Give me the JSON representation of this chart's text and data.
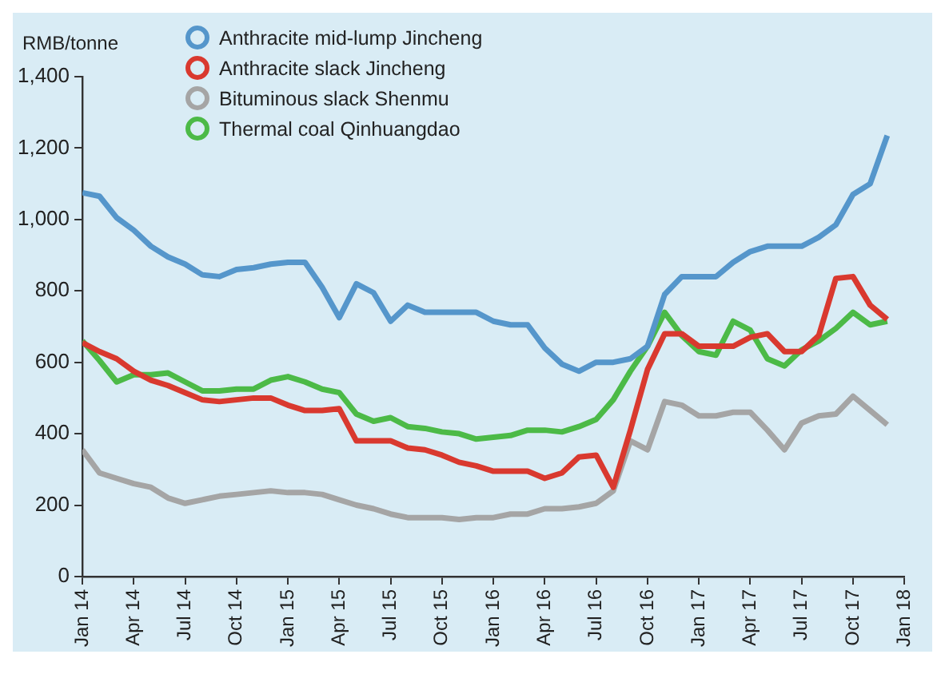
{
  "chart_data": {
    "type": "line",
    "ylabel": "RMB/tonne",
    "legend": "top left",
    "grid": false,
    "marker": "none",
    "line_style": "solid",
    "x": [
      "2014-01",
      "2014-02",
      "2014-03",
      "2014-04",
      "2014-05",
      "2014-06",
      "2014-07",
      "2014-08",
      "2014-09",
      "2014-10",
      "2014-11",
      "2014-12",
      "2015-01",
      "2015-02",
      "2015-03",
      "2015-04",
      "2015-05",
      "2015-06",
      "2015-07",
      "2015-08",
      "2015-09",
      "2015-10",
      "2015-11",
      "2015-12",
      "2016-01",
      "2016-02",
      "2016-03",
      "2016-04",
      "2016-05",
      "2016-06",
      "2016-07",
      "2016-08",
      "2016-09",
      "2016-10",
      "2016-11",
      "2016-12",
      "2017-01",
      "2017-02",
      "2017-03",
      "2017-04",
      "2017-05",
      "2017-06",
      "2017-07",
      "2017-08",
      "2017-09",
      "2017-10",
      "2017-11",
      "2017-12"
    ],
    "xlim": [
      "2014-01",
      "2018-01"
    ],
    "xticks": [
      {
        "value": "2014-01",
        "label": "Jan 14"
      },
      {
        "value": "2014-04",
        "label": "Apr 14"
      },
      {
        "value": "2014-07",
        "label": "Jul 14"
      },
      {
        "value": "2014-10",
        "label": "Oct 14"
      },
      {
        "value": "2015-01",
        "label": "Jan 15"
      },
      {
        "value": "2015-04",
        "label": "Apr 15"
      },
      {
        "value": "2015-07",
        "label": "Jul 15"
      },
      {
        "value": "2015-10",
        "label": "Oct 15"
      },
      {
        "value": "2016-01",
        "label": "Jan 16"
      },
      {
        "value": "2016-04",
        "label": "Apr 16"
      },
      {
        "value": "2016-07",
        "label": "Jul 16"
      },
      {
        "value": "2016-10",
        "label": "Oct 16"
      },
      {
        "value": "2017-01",
        "label": "Jan 17"
      },
      {
        "value": "2017-04",
        "label": "Apr 17"
      },
      {
        "value": "2017-07",
        "label": "Jul 17"
      },
      {
        "value": "2017-10",
        "label": "Oct 17"
      },
      {
        "value": "2018-01",
        "label": "Jan 18"
      }
    ],
    "ylim": [
      0,
      1400
    ],
    "yticks": [
      {
        "value": 0,
        "label": "0"
      },
      {
        "value": 200,
        "label": "200"
      },
      {
        "value": 400,
        "label": "400"
      },
      {
        "value": 600,
        "label": "600"
      },
      {
        "value": 800,
        "label": "800"
      },
      {
        "value": 1000,
        "label": "1,000"
      },
      {
        "value": 1200,
        "label": "1,200"
      },
      {
        "value": 1400,
        "label": "1,400"
      }
    ],
    "series": [
      {
        "name": "Anthracite mid-lump Jincheng",
        "color": "#5596cb",
        "values": [
          1075,
          1065,
          1005,
          970,
          925,
          895,
          875,
          845,
          840,
          860,
          865,
          875,
          880,
          880,
          810,
          725,
          820,
          795,
          715,
          760,
          740,
          740,
          740,
          740,
          715,
          705,
          705,
          640,
          595,
          575,
          600,
          600,
          610,
          645,
          790,
          840,
          840,
          840,
          880,
          910,
          925,
          925,
          925,
          950,
          985,
          1070,
          1100,
          1235
        ]
      },
      {
        "name": "Anthracite slack Jincheng",
        "color": "#d9392f",
        "values": [
          655,
          630,
          610,
          575,
          550,
          535,
          515,
          495,
          490,
          495,
          500,
          500,
          480,
          465,
          465,
          470,
          380,
          380,
          380,
          360,
          355,
          340,
          320,
          310,
          295,
          295,
          295,
          275,
          290,
          335,
          340,
          250,
          410,
          580,
          680,
          680,
          645,
          645,
          645,
          670,
          680,
          630,
          630,
          675,
          835,
          840,
          760,
          720
        ]
      },
      {
        "name": "Bituminous slack Shenmu",
        "color": "#a5a5a5",
        "values": [
          355,
          290,
          275,
          260,
          250,
          220,
          205,
          215,
          225,
          230,
          235,
          240,
          235,
          235,
          230,
          215,
          200,
          190,
          175,
          165,
          165,
          165,
          160,
          165,
          165,
          175,
          175,
          190,
          190,
          195,
          205,
          240,
          380,
          355,
          490,
          480,
          450,
          450,
          460,
          460,
          410,
          355,
          430,
          450,
          455,
          505,
          465,
          425
        ]
      },
      {
        "name": "Thermal coal Qinhuangdao",
        "color": "#4cba47",
        "values": [
          660,
          605,
          545,
          565,
          565,
          570,
          545,
          520,
          520,
          525,
          525,
          550,
          560,
          545,
          525,
          515,
          455,
          435,
          445,
          420,
          415,
          405,
          400,
          385,
          390,
          395,
          410,
          410,
          405,
          420,
          440,
          495,
          575,
          645,
          740,
          675,
          630,
          620,
          715,
          690,
          610,
          590,
          635,
          660,
          695,
          740,
          705,
          715
        ]
      }
    ]
  }
}
